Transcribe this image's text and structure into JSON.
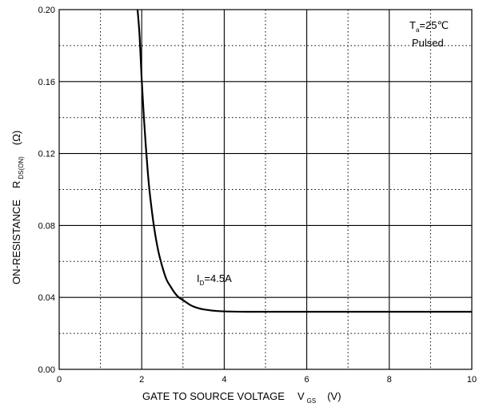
{
  "chart_data": {
    "type": "line",
    "xlim": [
      0,
      10
    ],
    "ylim": [
      0,
      0.2
    ],
    "x_ticks": [
      "0",
      "2",
      "4",
      "6",
      "8",
      "10"
    ],
    "y_ticks": [
      "0.00",
      "0.04",
      "0.08",
      "0.12",
      "0.16",
      "0.20"
    ],
    "grid": true,
    "xlabel": {
      "text": "GATE TO SOURCE VOLTAGE",
      "symbol": "V",
      "subscript": "GS",
      "unit": "(V)"
    },
    "ylabel": {
      "text": "ON-RESISTANCE",
      "symbol": "R",
      "subscript": "DS(ON)",
      "unit": "(Ω)"
    },
    "conditions": {
      "temp_symbol": "T",
      "temp_sub": "a",
      "temp_value": "=25℃",
      "mode": "Pulsed"
    },
    "series": [
      {
        "label_symbol": "I",
        "label_sub": "D",
        "label_value": "=4.5A",
        "x": [
          1.9,
          1.95,
          2.0,
          2.05,
          2.1,
          2.15,
          2.2,
          2.3,
          2.4,
          2.5,
          2.6,
          2.7,
          2.8,
          2.9,
          3.0,
          3.2,
          3.4,
          3.6,
          3.8,
          4.0,
          4.5,
          5.0,
          6.0,
          7.0,
          8.0,
          9.0,
          10.0
        ],
        "y": [
          0.2,
          0.185,
          0.161,
          0.141,
          0.124,
          0.109,
          0.097,
          0.079,
          0.066,
          0.057,
          0.05,
          0.046,
          0.0425,
          0.04,
          0.0385,
          0.0355,
          0.0338,
          0.033,
          0.0325,
          0.0322,
          0.032,
          0.032,
          0.032,
          0.032,
          0.032,
          0.032,
          0.032
        ]
      }
    ]
  }
}
